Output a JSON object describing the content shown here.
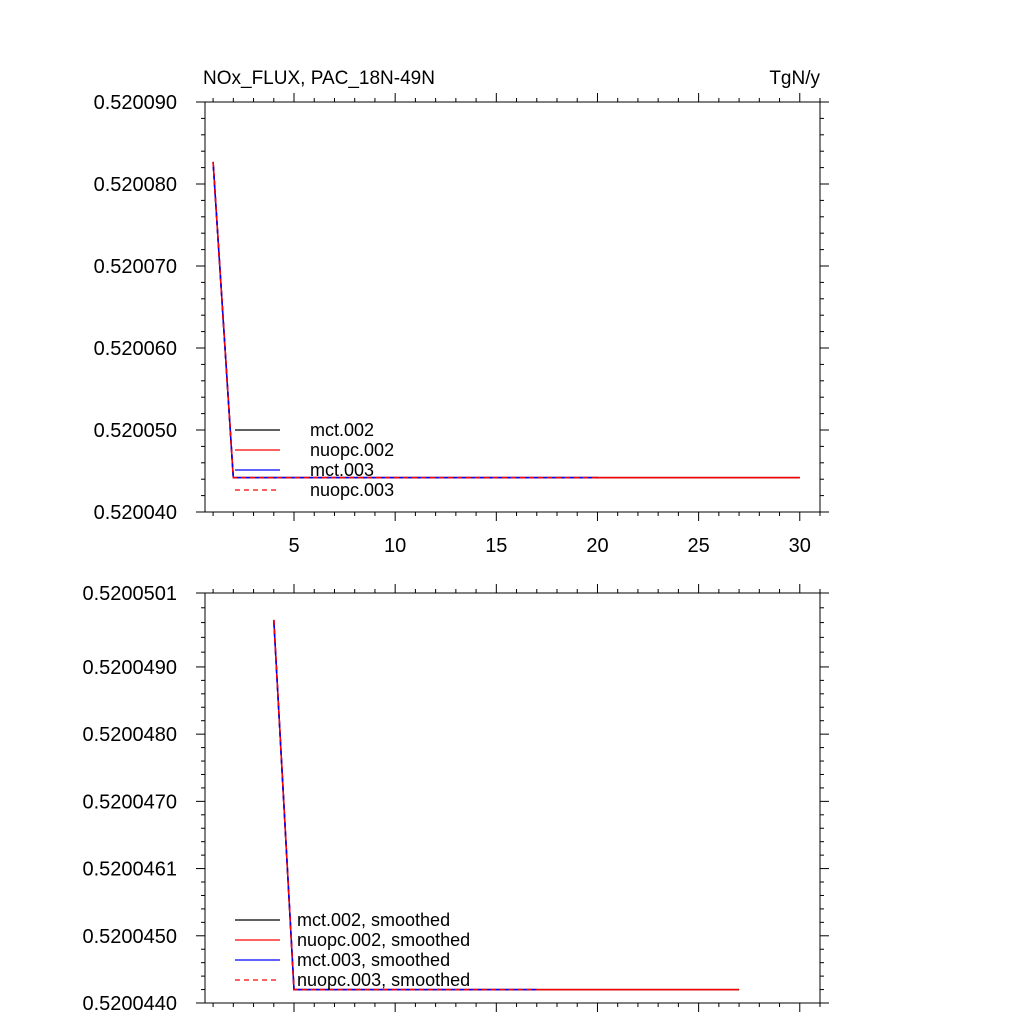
{
  "chart_data": [
    {
      "type": "line",
      "title_left": "NOx_FLUX, PAC_18N-49N",
      "title_right": "TgN/y",
      "xlim": [
        0.6,
        31
      ],
      "ylim": [
        0.52004,
        0.52009
      ],
      "xticks": [
        5,
        10,
        15,
        20,
        25,
        30
      ],
      "xtick_labels": [
        "5",
        "10",
        "15",
        "20",
        "25",
        "30"
      ],
      "yticks": [
        0.52004,
        0.52005,
        0.52006,
        0.52007,
        0.52008,
        0.52009
      ],
      "ytick_labels": [
        "0.520040",
        "0.520050",
        "0.520060",
        "0.520070",
        "0.520080",
        "0.520090"
      ],
      "legend_position": "bottom-left",
      "series": [
        {
          "name": "mct.002",
          "color": "#000000",
          "dash": "solid",
          "x": [
            1,
            2,
            3,
            4,
            5,
            6,
            7,
            8,
            9,
            10,
            11,
            12,
            13,
            14,
            15,
            16,
            17,
            18,
            19,
            20,
            21,
            22,
            23,
            24,
            25,
            26,
            27,
            28,
            29,
            30
          ],
          "y": [
            0.5200827,
            0.5200442,
            0.5200442,
            0.5200442,
            0.5200442,
            0.5200442,
            0.5200442,
            0.5200442,
            0.5200442,
            0.5200442,
            0.5200442,
            0.5200442,
            0.5200442,
            0.5200442,
            0.5200442,
            0.5200442,
            0.5200442,
            0.5200442,
            0.5200442,
            0.5200442,
            0.5200442,
            0.5200442,
            0.5200442,
            0.5200442,
            0.5200442,
            0.5200442,
            0.5200442,
            0.5200442,
            0.5200442,
            0.5200442
          ]
        },
        {
          "name": "nuopc.002",
          "color": "#ff0000",
          "dash": "solid",
          "x": [
            1,
            2,
            3,
            4,
            5,
            6,
            7,
            8,
            9,
            10,
            11,
            12,
            13,
            14,
            15,
            16,
            17,
            18,
            19,
            20,
            21,
            22,
            23,
            24,
            25,
            26,
            27,
            28,
            29,
            30
          ],
          "y": [
            0.5200827,
            0.5200442,
            0.5200442,
            0.5200442,
            0.5200442,
            0.5200442,
            0.5200442,
            0.5200442,
            0.5200442,
            0.5200442,
            0.5200442,
            0.5200442,
            0.5200442,
            0.5200442,
            0.5200442,
            0.5200442,
            0.5200442,
            0.5200442,
            0.5200442,
            0.5200442,
            0.5200442,
            0.5200442,
            0.5200442,
            0.5200442,
            0.5200442,
            0.5200442,
            0.5200442,
            0.5200442,
            0.5200442,
            0.5200442
          ]
        },
        {
          "name": "mct.003",
          "color": "#0000ff",
          "dash": "solid",
          "x": [
            1,
            2,
            3,
            4,
            5,
            6,
            7,
            8,
            9,
            10,
            11,
            12,
            13,
            14,
            15,
            16,
            17,
            18,
            19,
            20
          ],
          "y": [
            0.5200827,
            0.5200442,
            0.5200442,
            0.5200442,
            0.5200442,
            0.5200442,
            0.5200442,
            0.5200442,
            0.5200442,
            0.5200442,
            0.5200442,
            0.5200442,
            0.5200442,
            0.5200442,
            0.5200442,
            0.5200442,
            0.5200442,
            0.5200442,
            0.5200442,
            0.5200442
          ]
        },
        {
          "name": "nuopc.003",
          "color": "#ff0000",
          "dash": "dashed",
          "x": [
            1,
            2,
            3,
            4,
            5,
            6,
            7,
            8,
            9,
            10,
            11,
            12,
            13,
            14,
            15,
            16,
            17,
            18,
            19,
            20
          ],
          "y": [
            0.5200827,
            0.5200442,
            0.5200442,
            0.5200442,
            0.5200442,
            0.5200442,
            0.5200442,
            0.5200442,
            0.5200442,
            0.5200442,
            0.5200442,
            0.5200442,
            0.5200442,
            0.5200442,
            0.5200442,
            0.5200442,
            0.5200442,
            0.5200442,
            0.5200442,
            0.5200442
          ]
        }
      ]
    },
    {
      "type": "line",
      "title_left": "",
      "title_right": "",
      "xlim": [
        0.6,
        31
      ],
      "ylim": [
        0.520044,
        0.5200501
      ],
      "xticks": [
        5,
        10,
        15,
        20,
        25,
        30
      ],
      "xtick_labels": [
        "",
        "",
        "",
        "",
        "",
        ""
      ],
      "yticks": [
        0.520044,
        0.520045,
        0.520046,
        0.520047,
        0.520048,
        0.520049,
        0.5200501
      ],
      "ytick_labels": [
        "0.5200440",
        "0.5200450",
        "0.5200461",
        "0.5200470",
        "0.5200480",
        "0.5200490",
        "0.5200501"
      ],
      "legend_position": "bottom-left",
      "series": [
        {
          "name": "mct.002, smoothed",
          "color": "#000000",
          "dash": "solid",
          "x": [
            4,
            5,
            6,
            7,
            8,
            9,
            10,
            11,
            12,
            13,
            14,
            15,
            16,
            17,
            18,
            19,
            20,
            21,
            22,
            23,
            24,
            25,
            26,
            27
          ],
          "y": [
            0.5200497,
            0.5200442,
            0.5200442,
            0.5200442,
            0.5200442,
            0.5200442,
            0.5200442,
            0.5200442,
            0.5200442,
            0.5200442,
            0.5200442,
            0.5200442,
            0.5200442,
            0.5200442,
            0.5200442,
            0.5200442,
            0.5200442,
            0.5200442,
            0.5200442,
            0.5200442,
            0.5200442,
            0.5200442,
            0.5200442,
            0.5200442
          ]
        },
        {
          "name": "nuopc.002, smoothed",
          "color": "#ff0000",
          "dash": "solid",
          "x": [
            4,
            5,
            6,
            7,
            8,
            9,
            10,
            11,
            12,
            13,
            14,
            15,
            16,
            17,
            18,
            19,
            20,
            21,
            22,
            23,
            24,
            25,
            26,
            27
          ],
          "y": [
            0.5200497,
            0.5200442,
            0.5200442,
            0.5200442,
            0.5200442,
            0.5200442,
            0.5200442,
            0.5200442,
            0.5200442,
            0.5200442,
            0.5200442,
            0.5200442,
            0.5200442,
            0.5200442,
            0.5200442,
            0.5200442,
            0.5200442,
            0.5200442,
            0.5200442,
            0.5200442,
            0.5200442,
            0.5200442,
            0.5200442,
            0.5200442
          ]
        },
        {
          "name": "mct.003, smoothed",
          "color": "#0000ff",
          "dash": "solid",
          "x": [
            4,
            5,
            6,
            7,
            8,
            9,
            10,
            11,
            12,
            13,
            14,
            15,
            16,
            17
          ],
          "y": [
            0.5200497,
            0.5200442,
            0.5200442,
            0.5200442,
            0.5200442,
            0.5200442,
            0.5200442,
            0.5200442,
            0.5200442,
            0.5200442,
            0.5200442,
            0.5200442,
            0.5200442,
            0.5200442
          ]
        },
        {
          "name": "nuopc.003, smoothed",
          "color": "#ff0000",
          "dash": "dashed",
          "x": [
            4,
            5,
            6,
            7,
            8,
            9,
            10,
            11,
            12,
            13,
            14,
            15,
            16,
            17
          ],
          "y": [
            0.5200497,
            0.5200442,
            0.5200442,
            0.5200442,
            0.5200442,
            0.5200442,
            0.5200442,
            0.5200442,
            0.5200442,
            0.5200442,
            0.5200442,
            0.5200442,
            0.5200442,
            0.5200442
          ]
        }
      ]
    }
  ]
}
